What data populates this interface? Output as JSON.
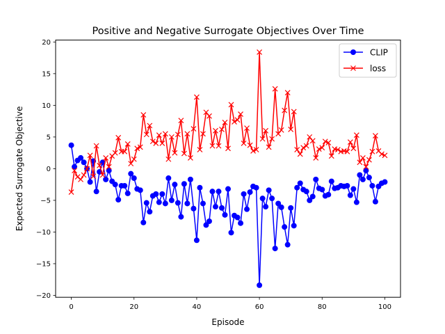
{
  "chart_data": {
    "type": "line",
    "title": "Positive and Negative Surrogate Objectives Over Time",
    "xlabel": "Episode",
    "ylabel": "Expected Surrogate Objective",
    "xlim": [
      -5,
      105
    ],
    "ylim": [
      -20.3,
      20.3
    ],
    "xticks": [
      0,
      20,
      40,
      60,
      80,
      100
    ],
    "yticks": [
      -20,
      -15,
      -10,
      -5,
      0,
      5,
      10,
      15,
      20
    ],
    "grid": false,
    "legend_position": "top-right",
    "series": [
      {
        "name": "CLIP",
        "color": "#0000ff",
        "marker": "circle",
        "x": [
          0,
          1,
          2,
          3,
          4,
          5,
          6,
          7,
          8,
          9,
          10,
          11,
          12,
          13,
          14,
          15,
          16,
          17,
          18,
          19,
          20,
          21,
          22,
          23,
          24,
          25,
          26,
          27,
          28,
          29,
          30,
          31,
          32,
          33,
          34,
          35,
          36,
          37,
          38,
          39,
          40,
          41,
          42,
          43,
          44,
          45,
          46,
          47,
          48,
          49,
          50,
          51,
          52,
          53,
          54,
          55,
          56,
          57,
          58,
          59,
          60,
          61,
          62,
          63,
          64,
          65,
          66,
          67,
          68,
          69,
          70,
          71,
          72,
          73,
          74,
          75,
          76,
          77,
          78,
          79,
          80,
          81,
          82,
          83,
          84,
          85,
          86,
          87,
          88,
          89,
          90,
          91,
          92,
          93,
          94,
          95,
          96,
          97,
          98,
          99,
          100
        ],
        "values": [
          3.7,
          0.3,
          1.3,
          1.7,
          1.0,
          0.0,
          -2.1,
          1.2,
          -3.6,
          -0.5,
          1.0,
          -1.7,
          -0.3,
          -2.0,
          -2.5,
          -4.9,
          -2.7,
          -2.7,
          -3.9,
          -0.8,
          -1.5,
          -3.2,
          -3.4,
          -8.5,
          -5.4,
          -6.8,
          -4.3,
          -4.0,
          -5.3,
          -4.0,
          -5.5,
          -1.5,
          -5.0,
          -2.5,
          -5.4,
          -7.6,
          -2.4,
          -5.5,
          -1.7,
          -6.3,
          -11.3,
          -3.0,
          -5.5,
          -8.9,
          -8.3,
          -3.6,
          -6.0,
          -3.6,
          -6.2,
          -7.3,
          -3.2,
          -10.1,
          -7.4,
          -7.7,
          -8.6,
          -4.0,
          -6.4,
          -3.7,
          -2.8,
          -3.0,
          -18.4,
          -4.7,
          -6.0,
          -3.4,
          -4.7,
          -12.6,
          -5.5,
          -6.1,
          -9.2,
          -12.0,
          -6.2,
          -9.0,
          -3.0,
          -2.3,
          -3.3,
          -3.6,
          -5.0,
          -4.4,
          -1.7,
          -3.1,
          -3.3,
          -4.3,
          -4.1,
          -2.0,
          -3.1,
          -3.0,
          -2.7,
          -2.8,
          -2.7,
          -4.2,
          -3.2,
          -5.3,
          -1.0,
          -1.7,
          -0.3,
          -1.4,
          -2.7,
          -5.2,
          -2.8,
          -2.3,
          -2.1
        ]
      },
      {
        "name": "loss",
        "color": "#ff0000",
        "marker": "x",
        "x": [
          0,
          1,
          2,
          3,
          4,
          5,
          6,
          7,
          8,
          9,
          10,
          11,
          12,
          13,
          14,
          15,
          16,
          17,
          18,
          19,
          20,
          21,
          22,
          23,
          24,
          25,
          26,
          27,
          28,
          29,
          30,
          31,
          32,
          33,
          34,
          35,
          36,
          37,
          38,
          39,
          40,
          41,
          42,
          43,
          44,
          45,
          46,
          47,
          48,
          49,
          50,
          51,
          52,
          53,
          54,
          55,
          56,
          57,
          58,
          59,
          60,
          61,
          62,
          63,
          64,
          65,
          66,
          67,
          68,
          69,
          70,
          71,
          72,
          73,
          74,
          75,
          76,
          77,
          78,
          79,
          80,
          81,
          82,
          83,
          84,
          85,
          86,
          87,
          88,
          89,
          90,
          91,
          92,
          93,
          94,
          95,
          96,
          97,
          98,
          99,
          100
        ],
        "values": [
          -3.7,
          -0.3,
          -1.3,
          -1.7,
          -1.0,
          0.0,
          2.1,
          -1.2,
          3.6,
          0.5,
          -1.0,
          1.7,
          0.3,
          2.0,
          2.5,
          4.9,
          2.7,
          2.7,
          3.9,
          0.8,
          1.5,
          3.2,
          3.4,
          8.5,
          5.4,
          6.8,
          4.3,
          4.0,
          5.3,
          4.0,
          5.5,
          1.5,
          5.0,
          2.5,
          5.4,
          7.6,
          2.4,
          5.5,
          1.7,
          6.3,
          11.3,
          3.0,
          5.5,
          8.9,
          8.3,
          3.6,
          6.0,
          3.6,
          6.2,
          7.3,
          3.2,
          10.1,
          7.4,
          7.7,
          8.6,
          4.0,
          6.4,
          3.7,
          2.8,
          3.0,
          18.4,
          4.7,
          6.0,
          3.4,
          4.7,
          12.6,
          5.5,
          6.1,
          9.2,
          12.0,
          6.2,
          9.0,
          3.0,
          2.3,
          3.3,
          3.6,
          5.0,
          4.4,
          1.7,
          3.1,
          3.3,
          4.3,
          4.1,
          2.0,
          3.1,
          3.0,
          2.7,
          2.8,
          2.7,
          4.2,
          3.2,
          5.3,
          1.0,
          1.7,
          0.3,
          1.4,
          2.7,
          5.2,
          2.8,
          2.3,
          2.1
        ]
      }
    ]
  }
}
